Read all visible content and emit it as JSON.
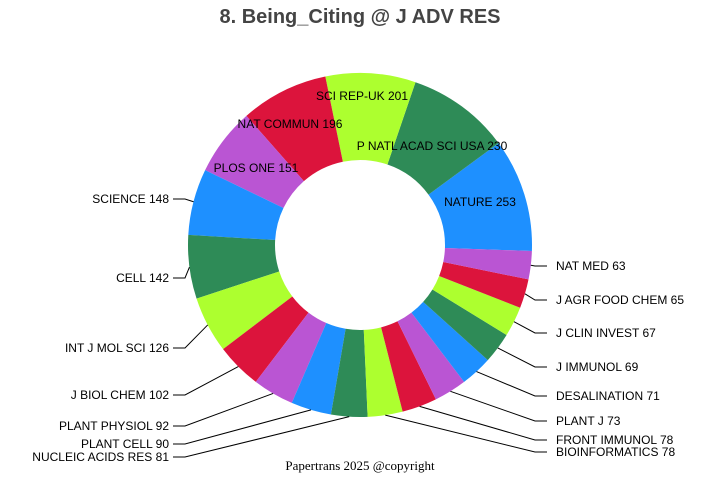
{
  "chart_data": {
    "type": "pie",
    "donut": true,
    "title": "8. Being_Citing @ J ADV RES",
    "footer": "Papertrans 2025 @copyright",
    "direction": "counterclockwise from east",
    "slices": [
      {
        "label": "NATURE",
        "value": 253,
        "color": "#1e90ff"
      },
      {
        "label": "P NATL ACAD SCI USA",
        "value": 230,
        "color": "#2e8b57"
      },
      {
        "label": "SCI REP-UK",
        "value": 201,
        "color": "#adff2f"
      },
      {
        "label": "NAT COMMUN",
        "value": 196,
        "color": "#dc143c"
      },
      {
        "label": "PLOS ONE",
        "value": 151,
        "color": "#ba55d3"
      },
      {
        "label": "SCIENCE",
        "value": 148,
        "color": "#1e90ff"
      },
      {
        "label": "CELL",
        "value": 142,
        "color": "#2e8b57"
      },
      {
        "label": "INT J MOL SCI",
        "value": 126,
        "color": "#adff2f"
      },
      {
        "label": "J BIOL CHEM",
        "value": 102,
        "color": "#dc143c"
      },
      {
        "label": "PLANT PHYSIOL",
        "value": 92,
        "color": "#ba55d3"
      },
      {
        "label": "PLANT CELL",
        "value": 90,
        "color": "#1e90ff"
      },
      {
        "label": "NUCLEIC ACIDS RES",
        "value": 81,
        "color": "#2e8b57"
      },
      {
        "label": "BIOINFORMATICS",
        "value": 78,
        "color": "#adff2f"
      },
      {
        "label": "FRONT IMMUNOL",
        "value": 78,
        "color": "#dc143c"
      },
      {
        "label": "PLANT J",
        "value": 73,
        "color": "#ba55d3"
      },
      {
        "label": "DESALINATION",
        "value": 71,
        "color": "#1e90ff"
      },
      {
        "label": "J IMMUNOL",
        "value": 69,
        "color": "#2e8b57"
      },
      {
        "label": "J CLIN INVEST",
        "value": 67,
        "color": "#adff2f"
      },
      {
        "label": "J AGR FOOD CHEM",
        "value": 65,
        "color": "#dc143c"
      },
      {
        "label": "NAT MED",
        "value": 63,
        "color": "#ba55d3"
      }
    ]
  }
}
